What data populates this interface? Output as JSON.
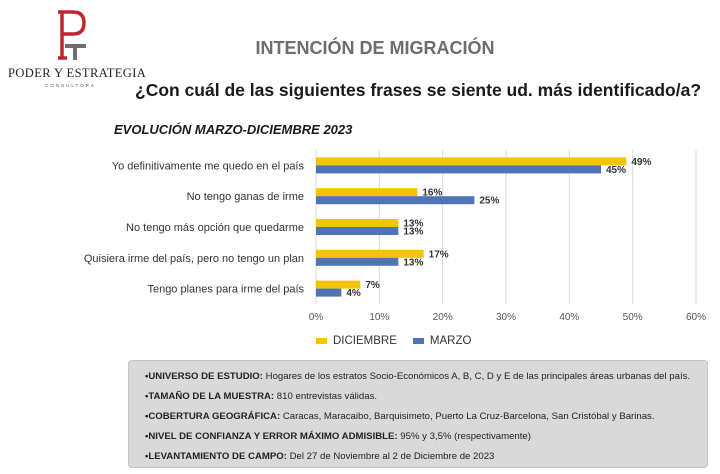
{
  "logo": {
    "name": "PODER Y ESTRATEGIA",
    "sub": "CONSULTORA",
    "colors": {
      "red": "#c0262d",
      "gray": "#6e6e6e"
    }
  },
  "header": {
    "title": "INTENCIÓN DE MIGRACIÓN",
    "question": "¿Con cuál de las siguientes frases se siente ud. más identificado/a?"
  },
  "chart_data": {
    "type": "bar",
    "orientation": "horizontal",
    "title": "EVOLUCIÓN MARZO-DICIEMBRE 2023",
    "categories": [
      "Yo definitivamente me quedo en el país",
      "No tengo ganas de irme",
      "No tengo más opción que quedarme",
      "Quisiera irme del país, pero no tengo un plan",
      "Tengo planes para irme del país"
    ],
    "series": [
      {
        "name": "DICIEMBRE",
        "values": [
          49,
          16,
          13,
          17,
          7
        ],
        "color": "#f5c400"
      },
      {
        "name": "MARZO",
        "values": [
          45,
          25,
          13,
          13,
          4
        ],
        "color": "#4e73b6"
      }
    ],
    "value_suffix": "%",
    "xlim": [
      0,
      60
    ],
    "xticks": [
      "0%",
      "10%",
      "20%",
      "30%",
      "40%",
      "50%",
      "60%"
    ],
    "grid": true,
    "legend": "bottom"
  },
  "notes": [
    {
      "label": "•UNIVERSO DE ESTUDIO:",
      "text": " Hogares de los estratos Socio-Económicos A, B, C, D y E de las principales áreas urbanas del país."
    },
    {
      "label": "•TAMAÑO DE LA MUESTRA:",
      "text": " 810 entrevistas válidas."
    },
    {
      "label": "•COBERTURA GEOGRÁFICA:",
      "text": " Caracas, Maracaibo, Barquisimeto, Puerto La Cruz-Barcelona, San Cristóbal y Barinas."
    },
    {
      "label": "•NIVEL DE CONFIANZA Y ERROR MÁXIMO ADMISIBLE:",
      "text": " 95% y 3,5% (respectivamente)"
    },
    {
      "label": "•LEVANTAMIENTO DE CAMPO:",
      "text": " Del 27 de Noviembre al 2 de Diciembre de 2023"
    }
  ]
}
